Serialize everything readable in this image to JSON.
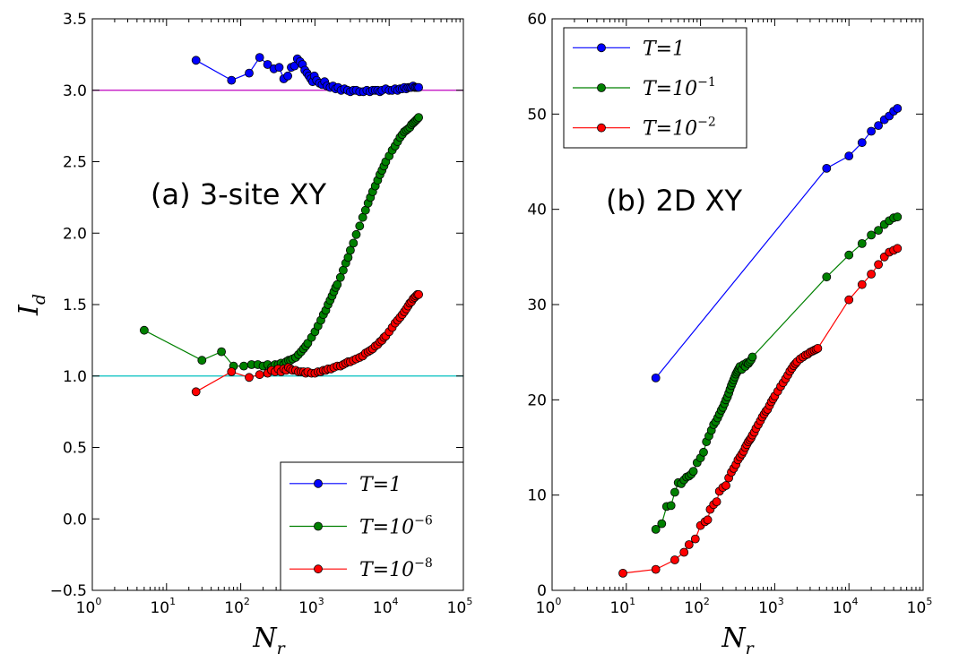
{
  "chart_data": [
    {
      "type": "line",
      "panel": "a",
      "title": "(a) 3-site XY",
      "xlabel": "N",
      "xlabel_sub": "r",
      "ylabel": "I",
      "ylabel_sub": "d",
      "xscale": "log",
      "xlim_exp": [
        0,
        5
      ],
      "ylim": [
        -0.5,
        3.5
      ],
      "y_ticks": [
        "−0.5",
        "0.0",
        "0.5",
        "1.0",
        "1.5",
        "2.0",
        "2.5",
        "3.0",
        "3.5"
      ],
      "x_tick_base": "10",
      "x_tick_exps": [
        "0",
        "1",
        "2",
        "3",
        "4",
        "5"
      ],
      "legend_position": "lower-right",
      "reference_lines": [
        {
          "y": 3.0,
          "color": "#bf00bf"
        },
        {
          "y": 1.0,
          "color": "#00bfbf"
        }
      ],
      "series": [
        {
          "name": "T=1",
          "label_main": "T=1",
          "label_sup": "",
          "color": "#0000ff",
          "x": [
            25,
            75,
            130,
            180,
            230,
            280,
            330,
            380,
            430,
            480,
            530,
            580,
            630,
            680,
            730,
            780,
            830,
            880,
            930,
            980,
            1050,
            1150,
            1250,
            1350,
            1450,
            1600,
            1750,
            1900,
            2050,
            2250,
            2500,
            2750,
            3000,
            3300,
            3600,
            4000,
            4500,
            5000,
            5500,
            6000,
            6500,
            7000,
            7500,
            8000,
            9000,
            10000,
            11000,
            12000,
            13000,
            14000,
            15000,
            16000,
            17000,
            18000,
            19000,
            20000,
            21000,
            22000,
            23000,
            24000,
            25000
          ],
          "y": [
            3.21,
            3.07,
            3.12,
            3.23,
            3.18,
            3.15,
            3.16,
            3.08,
            3.1,
            3.16,
            3.17,
            3.22,
            3.2,
            3.18,
            3.14,
            3.12,
            3.1,
            3.08,
            3.06,
            3.1,
            3.07,
            3.05,
            3.04,
            3.06,
            3.03,
            3.02,
            3.03,
            3.01,
            3.02,
            3.0,
            3.01,
            3.0,
            2.99,
            3.0,
            3.0,
            2.99,
            2.99,
            3.0,
            2.99,
            3.0,
            3.0,
            3.0,
            2.99,
            3.0,
            3.01,
            3.0,
            3.0,
            3.01,
            3.0,
            3.01,
            3.01,
            3.02,
            3.01,
            3.02,
            3.02,
            3.02,
            3.03,
            3.02,
            3.02,
            3.02,
            3.02
          ]
        },
        {
          "name": "T=10^-6",
          "label_main": "T=10",
          "label_sup": "−6",
          "color": "#008000",
          "x": [
            5,
            30,
            55,
            80,
            110,
            140,
            170,
            200,
            230,
            260,
            290,
            320,
            350,
            380,
            410,
            440,
            470,
            500,
            550,
            600,
            650,
            700,
            750,
            800,
            900,
            1000,
            1100,
            1200,
            1300,
            1400,
            1500,
            1600,
            1700,
            1800,
            1900,
            2000,
            2200,
            2400,
            2600,
            2800,
            3000,
            3300,
            3600,
            4000,
            4400,
            4800,
            5200,
            5600,
            6000,
            6500,
            7000,
            7500,
            8000,
            8500,
            9000,
            10000,
            11000,
            12000,
            13000,
            14000,
            15000,
            16000,
            17000,
            18000,
            19000,
            20000,
            21000,
            22000,
            23000,
            24000,
            25000
          ],
          "y": [
            1.32,
            1.11,
            1.17,
            1.07,
            1.07,
            1.08,
            1.08,
            1.07,
            1.08,
            1.06,
            1.08,
            1.08,
            1.09,
            1.08,
            1.1,
            1.11,
            1.11,
            1.12,
            1.13,
            1.15,
            1.17,
            1.19,
            1.21,
            1.23,
            1.27,
            1.31,
            1.35,
            1.39,
            1.43,
            1.46,
            1.5,
            1.53,
            1.56,
            1.59,
            1.62,
            1.64,
            1.69,
            1.74,
            1.79,
            1.83,
            1.88,
            1.93,
            1.99,
            2.05,
            2.11,
            2.16,
            2.21,
            2.25,
            2.29,
            2.33,
            2.37,
            2.41,
            2.44,
            2.47,
            2.5,
            2.54,
            2.58,
            2.61,
            2.64,
            2.67,
            2.69,
            2.71,
            2.72,
            2.73,
            2.74,
            2.76,
            2.77,
            2.78,
            2.79,
            2.8,
            2.81
          ]
        },
        {
          "name": "T=10^-8",
          "label_main": "T=10",
          "label_sup": "−8",
          "color": "#ff0000",
          "x": [
            25,
            75,
            130,
            180,
            230,
            260,
            290,
            320,
            350,
            380,
            410,
            440,
            470,
            500,
            550,
            600,
            650,
            700,
            750,
            800,
            900,
            1000,
            1100,
            1200,
            1300,
            1400,
            1500,
            1650,
            1800,
            2000,
            2200,
            2400,
            2600,
            2800,
            3000,
            3300,
            3600,
            4000,
            4400,
            4800,
            5200,
            5600,
            6000,
            6500,
            7000,
            7500,
            8000,
            8500,
            9000,
            10000,
            11000,
            12000,
            13000,
            14000,
            15000,
            16000,
            17000,
            18000,
            19000,
            20000,
            21000,
            22000,
            23000,
            24000,
            25000
          ],
          "y": [
            0.89,
            1.03,
            0.99,
            1.01,
            1.02,
            1.04,
            1.03,
            1.05,
            1.03,
            1.05,
            1.04,
            1.06,
            1.05,
            1.04,
            1.04,
            1.03,
            1.03,
            1.03,
            1.02,
            1.03,
            1.02,
            1.02,
            1.03,
            1.03,
            1.04,
            1.04,
            1.05,
            1.05,
            1.06,
            1.07,
            1.07,
            1.08,
            1.09,
            1.1,
            1.1,
            1.11,
            1.12,
            1.13,
            1.14,
            1.16,
            1.17,
            1.18,
            1.19,
            1.21,
            1.22,
            1.24,
            1.25,
            1.27,
            1.28,
            1.31,
            1.34,
            1.37,
            1.39,
            1.41,
            1.43,
            1.45,
            1.47,
            1.49,
            1.51,
            1.52,
            1.54,
            1.55,
            1.56,
            1.57,
            1.57
          ]
        }
      ]
    },
    {
      "type": "line",
      "panel": "b",
      "title": "(b) 2D XY",
      "xlabel": "N",
      "xlabel_sub": "r",
      "ylabel": "",
      "xscale": "log",
      "xlim_exp": [
        0,
        5
      ],
      "ylim": [
        0,
        60
      ],
      "y_ticks": [
        "0",
        "10",
        "20",
        "30",
        "40",
        "50",
        "60"
      ],
      "x_tick_base": "10",
      "x_tick_exps": [
        "0",
        "1",
        "2",
        "3",
        "4",
        "5"
      ],
      "legend_position": "upper-left",
      "series": [
        {
          "name": "T=1",
          "label_main": "T=1",
          "label_sup": "",
          "color": "#0000ff",
          "x": [
            25,
            5000,
            10000,
            15000,
            20000,
            25000,
            30000,
            35000,
            40000,
            45000
          ],
          "y": [
            22.3,
            44.3,
            45.6,
            47.0,
            48.2,
            48.8,
            49.4,
            49.8,
            50.3,
            50.6
          ]
        },
        {
          "name": "T=10^-1",
          "label_main": "T=10",
          "label_sup": "−1",
          "color": "#008000",
          "x": [
            25,
            30,
            35,
            40,
            45,
            50,
            55,
            60,
            65,
            70,
            75,
            80,
            90,
            100,
            110,
            120,
            130,
            140,
            150,
            160,
            170,
            180,
            190,
            200,
            210,
            220,
            230,
            240,
            250,
            260,
            270,
            280,
            290,
            300,
            310,
            320,
            330,
            340,
            360,
            380,
            400,
            420,
            440,
            460,
            480,
            500,
            5000,
            10000,
            15000,
            20000,
            25000,
            30000,
            35000,
            40000,
            45000
          ],
          "y": [
            6.4,
            7.0,
            8.8,
            8.9,
            10.3,
            11.3,
            11.2,
            11.6,
            11.9,
            12.0,
            12.2,
            12.5,
            13.4,
            13.9,
            14.5,
            15.6,
            16.2,
            16.8,
            17.4,
            17.7,
            18.1,
            18.5,
            18.9,
            19.2,
            19.6,
            20.0,
            20.3,
            20.7,
            21.1,
            21.5,
            21.8,
            22.1,
            22.4,
            22.7,
            22.9,
            23.1,
            23.3,
            23.5,
            23.2,
            23.7,
            23.5,
            23.9,
            23.8,
            24.0,
            24.2,
            24.5,
            32.9,
            35.2,
            36.4,
            37.3,
            37.8,
            38.4,
            38.8,
            39.1,
            39.2
          ]
        },
        {
          "name": "T=10^-2",
          "label_main": "T=10",
          "label_sup": "−2",
          "color": "#ff0000",
          "x": [
            9,
            25,
            45,
            60,
            70,
            85,
            100,
            115,
            125,
            135,
            150,
            165,
            180,
            200,
            220,
            240,
            260,
            280,
            300,
            320,
            340,
            360,
            380,
            400,
            420,
            440,
            460,
            480,
            500,
            530,
            560,
            600,
            640,
            680,
            720,
            760,
            800,
            850,
            900,
            950,
            1000,
            1100,
            1200,
            1300,
            1400,
            1500,
            1600,
            1700,
            1800,
            1900,
            2000,
            2200,
            2400,
            2600,
            2800,
            3000,
            3200,
            3400,
            3600,
            3800,
            10000,
            15000,
            20000,
            25000,
            30000,
            35000,
            40000,
            45000
          ],
          "y": [
            1.8,
            2.2,
            3.2,
            4.0,
            4.8,
            5.4,
            6.8,
            7.2,
            7.4,
            8.5,
            9.0,
            9.3,
            10.4,
            10.8,
            11.0,
            11.8,
            12.4,
            12.8,
            13.2,
            13.7,
            14.0,
            14.3,
            14.6,
            15.0,
            15.3,
            15.6,
            15.8,
            16.0,
            16.3,
            16.6,
            17.0,
            17.4,
            17.8,
            18.2,
            18.5,
            18.8,
            19.0,
            19.4,
            19.8,
            20.1,
            20.4,
            20.9,
            21.4,
            21.8,
            22.2,
            22.6,
            23.0,
            23.3,
            23.6,
            23.8,
            24.0,
            24.3,
            24.5,
            24.7,
            24.8,
            25.0,
            25.1,
            25.2,
            25.3,
            25.4,
            30.5,
            32.1,
            33.2,
            34.2,
            35.0,
            35.5,
            35.7,
            35.9
          ]
        }
      ]
    }
  ]
}
